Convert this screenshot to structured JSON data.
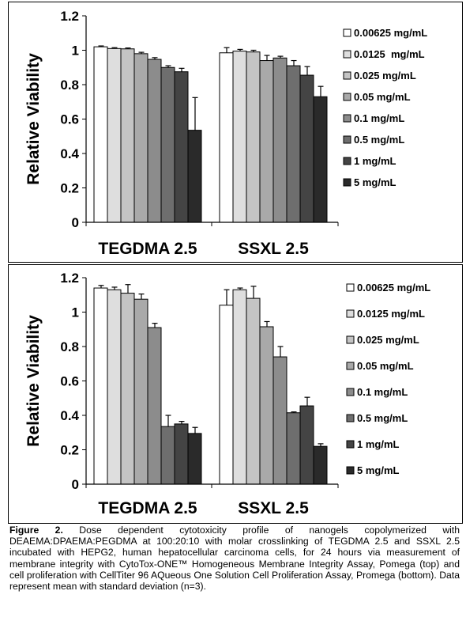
{
  "legend_colors": [
    "#ffffff",
    "#dedede",
    "#c4c4c4",
    "#a9a9a9",
    "#8c8c8c",
    "#6e6e6e",
    "#444444",
    "#2a2a2a"
  ],
  "chart_data": [
    {
      "type": "bar",
      "ylabel": "Relative Viability",
      "ylim": [
        0,
        1.2
      ],
      "yticks": [
        "0",
        "0.2",
        "0.4",
        "0.6",
        "0.8",
        "1",
        "1.2"
      ],
      "categories": [
        "TEGDMA 2.5",
        "SSXL 2.5"
      ],
      "legend_position": "right",
      "grid": false,
      "series": [
        {
          "name": "0.00625 mg/mL",
          "values": [
            1.02,
            0.985
          ],
          "errors": [
            0.005,
            0.03
          ]
        },
        {
          "name": "0.0125  mg/mL",
          "values": [
            1.01,
            0.995
          ],
          "errors": [
            0.005,
            0.01
          ]
        },
        {
          "name": "0.025 mg/mL",
          "values": [
            1.008,
            0.99
          ],
          "errors": [
            0.005,
            0.01
          ]
        },
        {
          "name": "0.05 mg/mL",
          "values": [
            0.98,
            0.94
          ],
          "errors": [
            0.008,
            0.03
          ]
        },
        {
          "name": "0.1 mg/mL",
          "values": [
            0.947,
            0.955
          ],
          "errors": [
            0.01,
            0.01
          ]
        },
        {
          "name": "0.5 mg/mL",
          "values": [
            0.9,
            0.91
          ],
          "errors": [
            0.01,
            0.03
          ]
        },
        {
          "name": "1 mg/mL",
          "values": [
            0.875,
            0.855
          ],
          "errors": [
            0.02,
            0.05
          ]
        },
        {
          "name": "5 mg/mL",
          "values": [
            0.535,
            0.73
          ],
          "errors": [
            0.19,
            0.06
          ]
        }
      ]
    },
    {
      "type": "bar",
      "ylabel": "Relative Viability",
      "ylim": [
        0,
        1.2
      ],
      "yticks": [
        "0",
        "0.2",
        "0.4",
        "0.6",
        "0.8",
        "1",
        "1.2"
      ],
      "categories": [
        "TEGDMA 2.5",
        "SSXL 2.5"
      ],
      "legend_position": "right",
      "grid": false,
      "series": [
        {
          "name": "0.00625 mg/mL",
          "values": [
            1.14,
            1.04
          ],
          "errors": [
            0.015,
            0.09
          ]
        },
        {
          "name": "0.0125 mg/mL",
          "values": [
            1.13,
            1.13
          ],
          "errors": [
            0.015,
            0.01
          ]
        },
        {
          "name": "0.025 mg/mL",
          "values": [
            1.11,
            1.08
          ],
          "errors": [
            0.05,
            0.07
          ]
        },
        {
          "name": "0.05 mg/mL",
          "values": [
            1.075,
            0.915
          ],
          "errors": [
            0.03,
            0.03
          ]
        },
        {
          "name": "0.1 mg/mL",
          "values": [
            0.91,
            0.74
          ],
          "errors": [
            0.025,
            0.06
          ]
        },
        {
          "name": "0.5 mg/mL",
          "values": [
            0.335,
            0.415
          ],
          "errors": [
            0.065,
            0.005
          ]
        },
        {
          "name": "1 mg/mL",
          "values": [
            0.35,
            0.455
          ],
          "errors": [
            0.015,
            0.05
          ]
        },
        {
          "name": "5 mg/mL",
          "values": [
            0.295,
            0.22
          ],
          "errors": [
            0.035,
            0.015
          ]
        }
      ]
    }
  ],
  "caption": {
    "lead": "Figure 2.",
    "text": "Dose dependent cytotoxicity profile of nanogels copolymerized with DEAEMA:DPAEMA:PEGDMA at 100:20:10 with molar crosslinking of TEGDMA 2.5 and SSXL 2.5 incubated with HEPG2, human hepatocellular carcinoma cells, for 24 hours via measurement of membrane integrity with CytoTox-ONE™ Homogeneous Membrane Integrity Assay, Pomega (top) and cell proliferation with CellTiter 96 AQueous One Solution Cell Proliferation Assay, Promega (bottom). Data represent mean with standard deviation (n=3)."
  }
}
